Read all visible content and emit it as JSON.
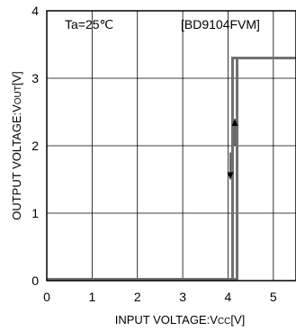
{
  "chart_data": {
    "type": "line",
    "title": "",
    "annotations": {
      "condition": "Ta=25℃",
      "model": "[BD9104FVM]"
    },
    "xlabel": {
      "main": "INPUT VOLTAGE:V",
      "sub": "CC",
      "unit": "[V]"
    },
    "ylabel": {
      "main": "OUTPUT VOLTAGE:V",
      "sub": "OUT",
      "unit": "[V]"
    },
    "xlim": [
      0,
      5.5
    ],
    "ylim": [
      0,
      4
    ],
    "xticks": [
      0,
      1,
      2,
      3,
      4,
      5
    ],
    "yticks": [
      0,
      1,
      2,
      3,
      4
    ],
    "grid": true,
    "series": [
      {
        "x": [
          0,
          4.2,
          4.2,
          5.5
        ],
        "y": [
          0.02,
          0.02,
          3.3,
          3.3
        ],
        "color": "#707070"
      },
      {
        "x": [
          0,
          4.1,
          4.1,
          5.5
        ],
        "y": [
          0.02,
          0.02,
          3.3,
          3.3
        ],
        "color": "#707070"
      }
    ],
    "arrows": [
      {
        "x": 4.15,
        "from": 2.0,
        "to": 2.4,
        "direction": "up"
      },
      {
        "x": 4.05,
        "from": 1.9,
        "to": 1.5,
        "direction": "down"
      }
    ]
  }
}
